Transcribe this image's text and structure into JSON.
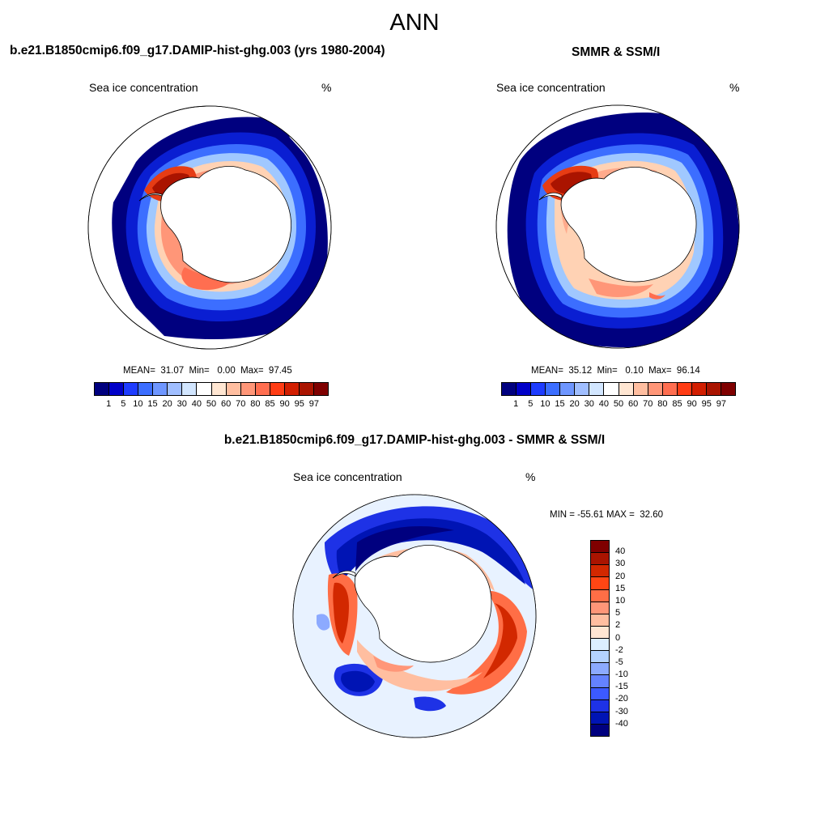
{
  "page_title": "ANN",
  "panel1": {
    "title": "b.e21.B1850cmip6.f09_g17.DAMIP-hist-ghg.003 (yrs 1980-2004)",
    "variable": "Sea ice concentration",
    "units": "%",
    "stats": "MEAN=  31.07  Min=   0.00  Max=  97.45"
  },
  "panel2": {
    "title": "SMMR & SSM/I",
    "variable": "Sea ice concentration",
    "units": "%",
    "stats": "MEAN=  35.12  Min=   0.10  Max=  96.14"
  },
  "panel3": {
    "title": "b.e21.B1850cmip6.f09_g17.DAMIP-hist-ghg.003 - SMMR & SSM/I",
    "variable": "Sea ice concentration",
    "units": "%",
    "stats": "MIN = -55.61 MAX =  32.60"
  },
  "colorbar_concentration": {
    "labels": [
      "1",
      "5",
      "10",
      "15",
      "20",
      "30",
      "40",
      "50",
      "60",
      "70",
      "80",
      "85",
      "90",
      "95",
      "97"
    ],
    "colors": [
      "#00007f",
      "#0000c8",
      "#1e3cff",
      "#3c6eff",
      "#6e96ff",
      "#a0beff",
      "#d2e6ff",
      "#ffffff",
      "#ffe6d2",
      "#ffbea0",
      "#ff9678",
      "#ff6e50",
      "#ff3c14",
      "#d21e00",
      "#aa1400",
      "#7f0000"
    ]
  },
  "colorbar_difference": {
    "labels": [
      "40",
      "30",
      "20",
      "15",
      "10",
      "5",
      "2",
      "0",
      "-2",
      "-5",
      "-10",
      "-15",
      "-20",
      "-30",
      "-40"
    ],
    "colors": [
      "#7f0000",
      "#aa1400",
      "#d22800",
      "#ff4614",
      "#ff6e46",
      "#ff9678",
      "#ffbea0",
      "#ffe6d2",
      "#dceeff",
      "#b4d2ff",
      "#8caaff",
      "#6482ff",
      "#3c5aff",
      "#1e32e6",
      "#0014b4",
      "#00007f"
    ]
  }
}
